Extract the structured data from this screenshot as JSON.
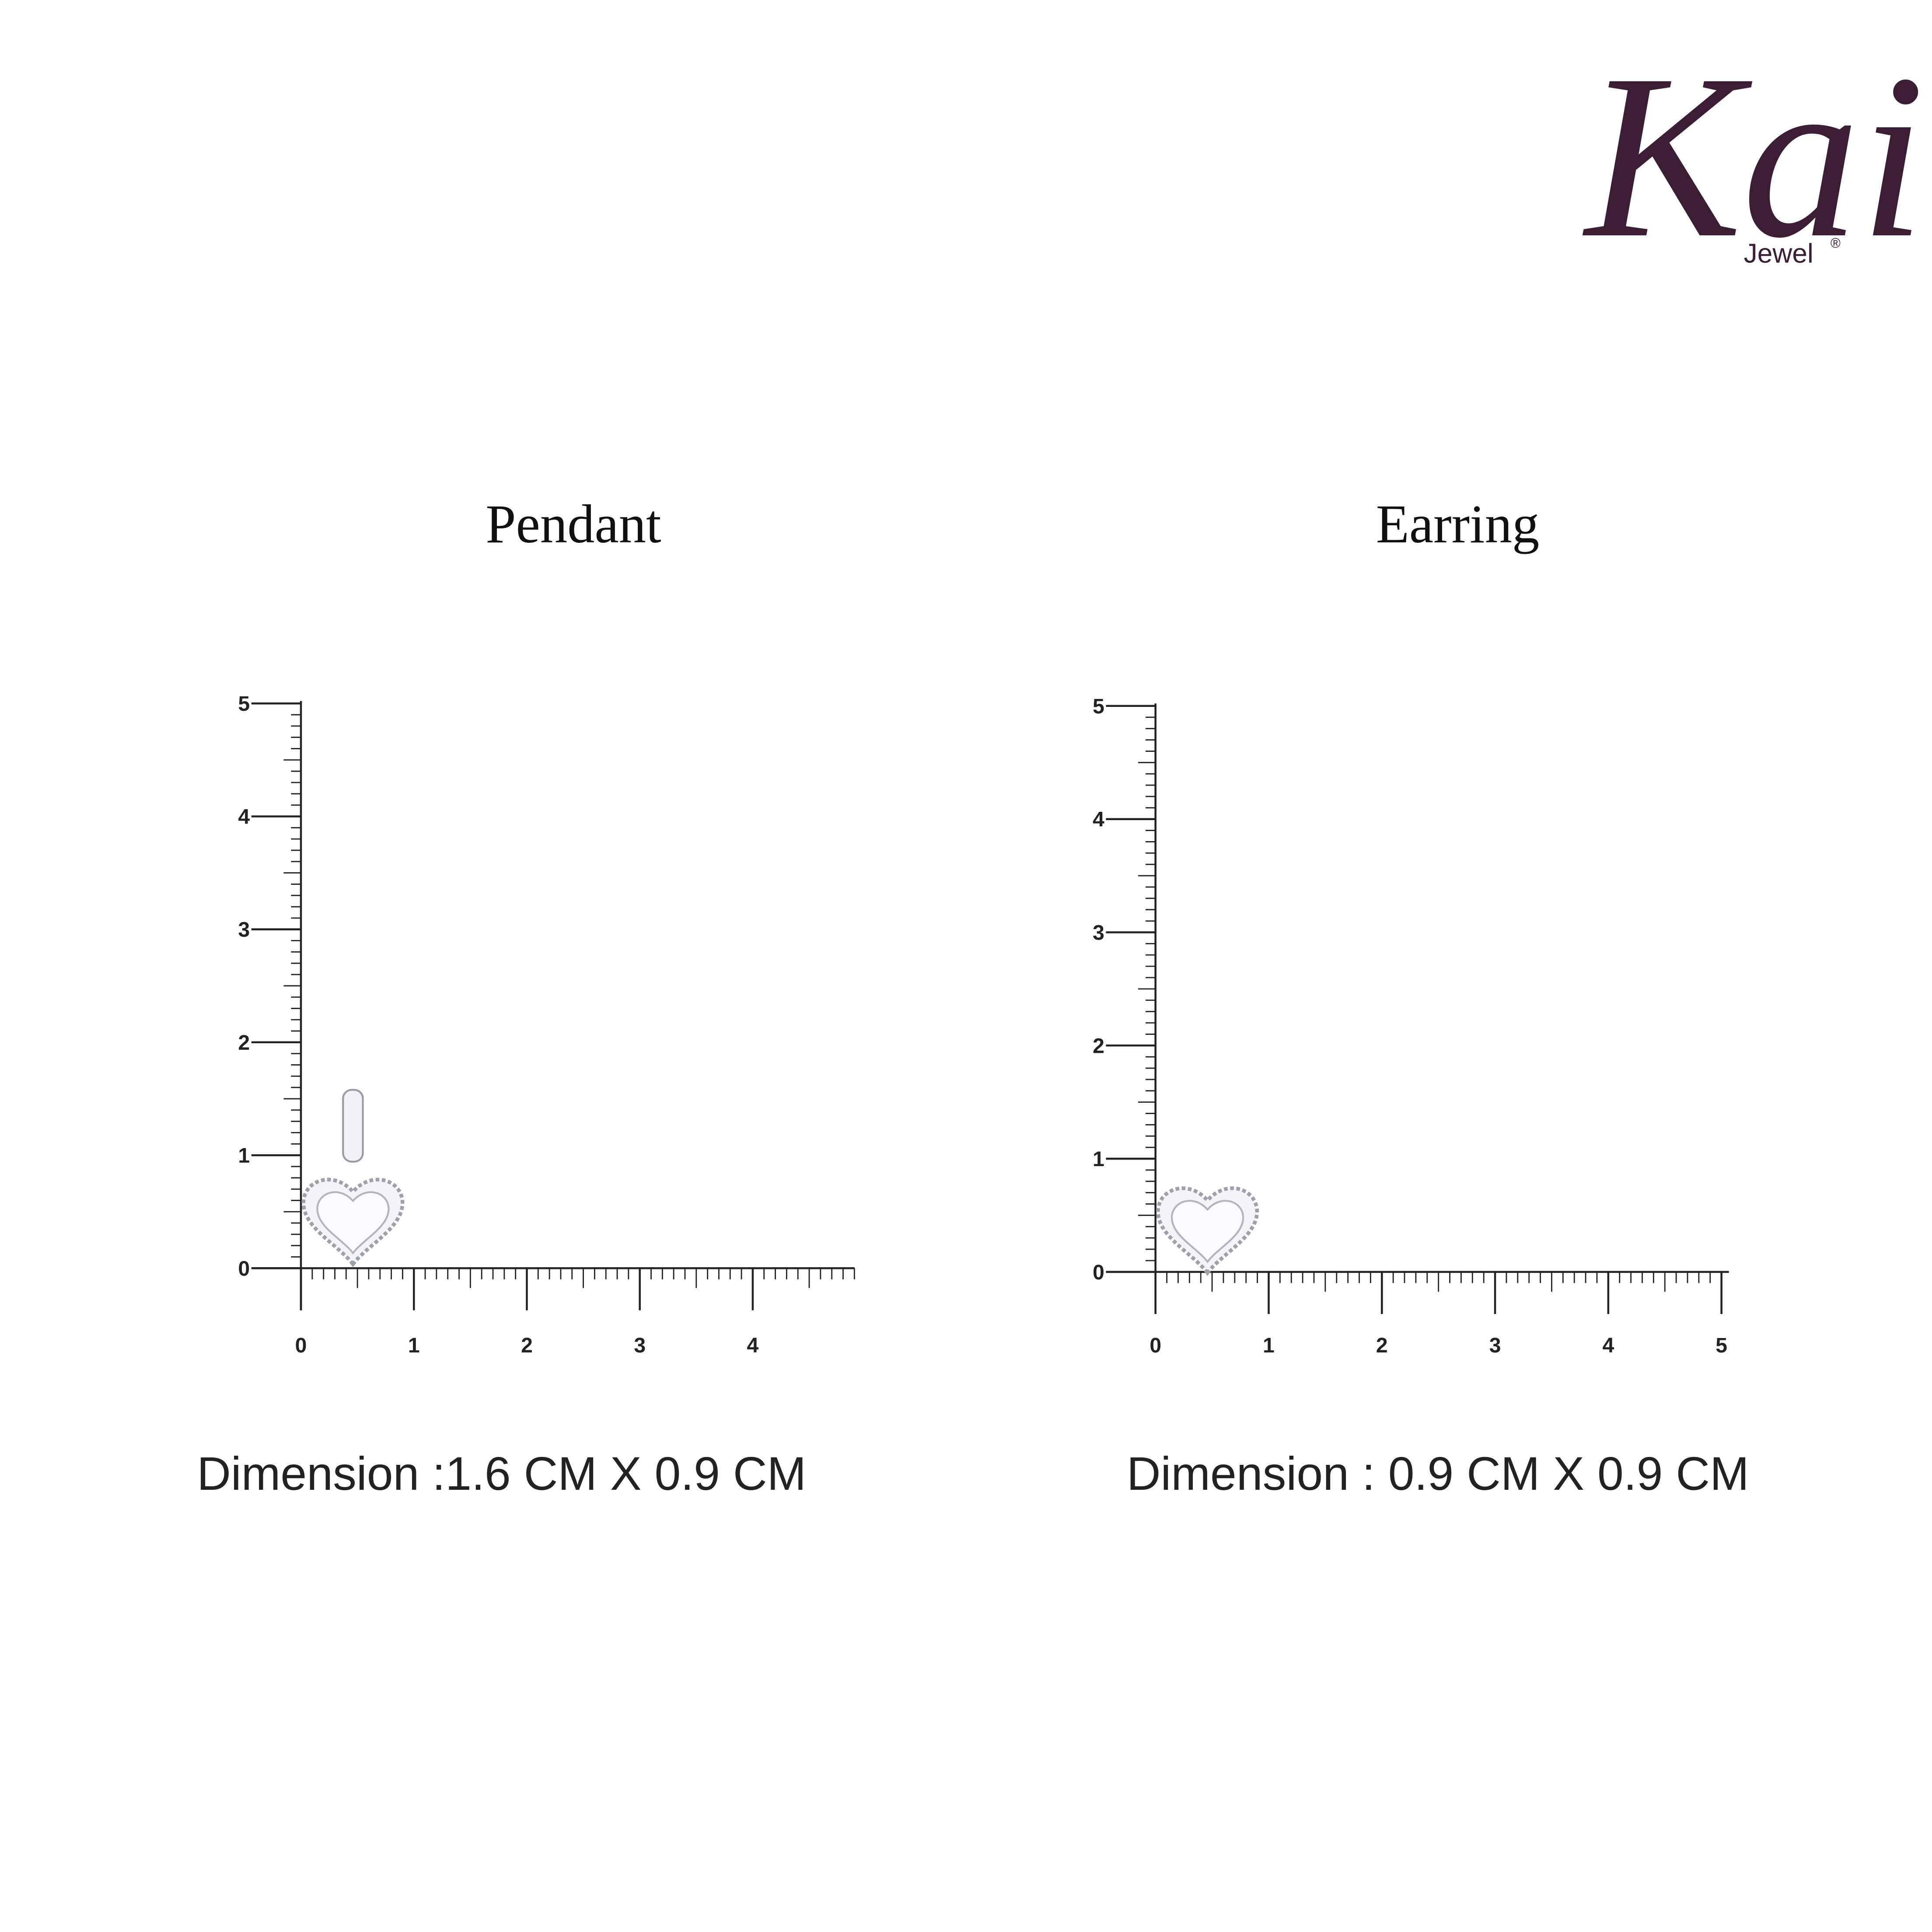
{
  "logo": {
    "brand": "Kai",
    "sub": "Jewel",
    "mark": "®"
  },
  "panels": [
    {
      "title": "Pendant",
      "y_labels": [
        "0",
        "1",
        "2",
        "3",
        "4",
        "5"
      ],
      "x_labels": [
        "0",
        "1",
        "2",
        "3",
        "4"
      ],
      "dimension": "Dimension :1.6 CM X 0.9 CM"
    },
    {
      "title": "Earring",
      "y_labels": [
        "0",
        "1",
        "2",
        "3",
        "4",
        "5"
      ],
      "x_labels": [
        "0",
        "1",
        "2",
        "3",
        "4",
        "5"
      ],
      "dimension": "Dimension : 0.9 CM X 0.9 CM"
    }
  ]
}
